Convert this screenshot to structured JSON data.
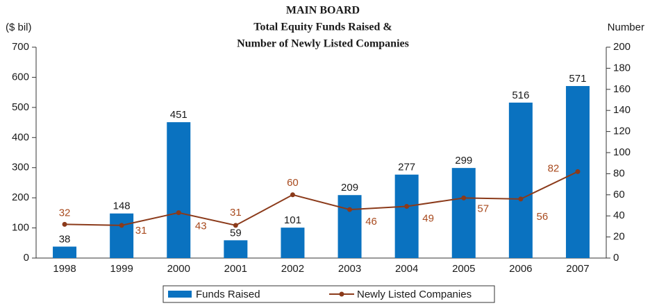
{
  "chart_data": {
    "type": "bar",
    "title": [
      "MAIN BOARD",
      "Total Equity Funds Raised &",
      "Number of Newly Listed Companies"
    ],
    "y_label": "($ bil)",
    "y2_label": "Number",
    "categories": [
      "1998",
      "1999",
      "2000",
      "2001",
      "2002",
      "2003",
      "2004",
      "2005",
      "2006",
      "2007"
    ],
    "series": [
      {
        "name": "Funds Raised",
        "type": "bar",
        "color": "#0a72c0",
        "values": [
          38,
          148,
          451,
          59,
          101,
          209,
          277,
          299,
          516,
          571
        ]
      },
      {
        "name": "Newly Listed Companies",
        "type": "line",
        "axis": "y2",
        "color": "#8b3a1a",
        "label_color": "#a84a1e",
        "values": [
          32,
          31,
          43,
          31,
          60,
          46,
          49,
          57,
          56,
          82
        ]
      }
    ],
    "ylim": [
      0,
      700
    ],
    "yticks": [
      0,
      100,
      200,
      300,
      400,
      500,
      600,
      700
    ],
    "y2lim": [
      0,
      200
    ],
    "y2ticks": [
      0,
      20,
      40,
      60,
      80,
      100,
      120,
      140,
      160,
      180,
      200
    ],
    "grid": false,
    "legend": "bottom"
  }
}
